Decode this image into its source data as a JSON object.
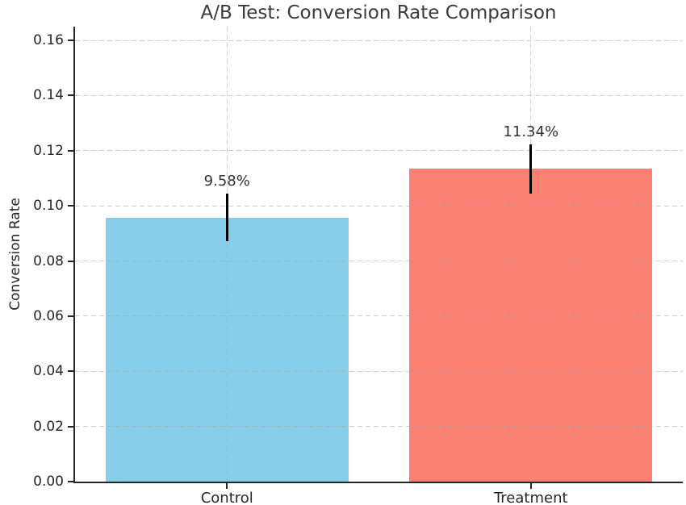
{
  "chart_data": {
    "type": "bar",
    "title": "A/B Test: Conversion Rate Comparison",
    "ylabel": "Conversion Rate",
    "xlabel": "",
    "categories": [
      "Control",
      "Treatment"
    ],
    "values": [
      0.0958,
      0.1134
    ],
    "errors": [
      0.0085,
      0.009
    ],
    "value_labels": [
      "9.58%",
      "11.34%"
    ],
    "bar_colors": [
      "#87CEEB",
      "#FA8072"
    ],
    "error_bar_color": "#000000",
    "bar_width_fraction": 0.8,
    "ylim": [
      0,
      0.165
    ],
    "yticks": [
      0,
      0.02,
      0.04,
      0.06,
      0.08,
      0.1,
      0.12,
      0.14,
      0.16
    ],
    "ytick_labels": [
      "0.00",
      "0.02",
      "0.04",
      "0.06",
      "0.08",
      "0.10",
      "0.12",
      "0.14",
      "0.16"
    ],
    "grid": {
      "linestyle": "dashed",
      "color": "#c8c8c8",
      "axes": "both",
      "on": true
    },
    "legend_position": "none",
    "background_color": "#ffffff",
    "text_color": "#262626"
  }
}
